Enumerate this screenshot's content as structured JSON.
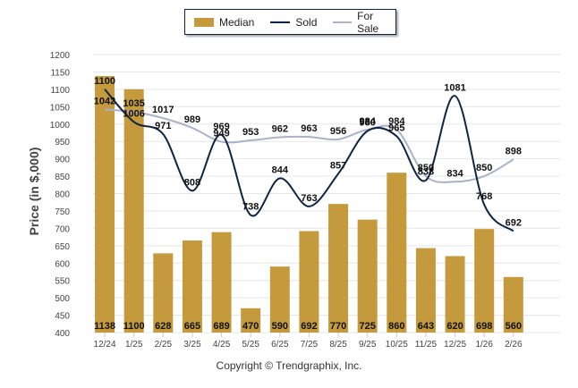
{
  "legend": {
    "median": "Median",
    "sold": "Sold",
    "for_sale": "For Sale"
  },
  "footer": "Copyright © Trendgraphix, Inc.",
  "colors": {
    "median": "#c49a3c",
    "sold": "#0f2444",
    "for_sale": "#a9b1cb",
    "grid": "#e6e6e6"
  },
  "chart_data": {
    "type": "bar",
    "title": "",
    "xlabel": "",
    "ylabel": "Price (in $,000)",
    "ylim": [
      400,
      1200
    ],
    "yticks": [
      400,
      450,
      500,
      550,
      600,
      650,
      700,
      750,
      800,
      850,
      900,
      950,
      1000,
      1050,
      1100,
      1150,
      1200
    ],
    "grid": true,
    "legend_position": "top-center",
    "categories": [
      "12/24",
      "1/25",
      "2/25",
      "3/25",
      "4/25",
      "5/25",
      "6/25",
      "7/25",
      "8/25",
      "9/25",
      "10/25",
      "11/25",
      "12/25",
      "1/26",
      "2/26"
    ],
    "series": [
      {
        "name": "Median",
        "kind": "bar",
        "values": [
          1138,
          1100,
          628,
          665,
          689,
          470,
          590,
          692,
          770,
          725,
          860,
          643,
          620,
          698,
          560
        ]
      },
      {
        "name": "Sold",
        "kind": "line",
        "values": [
          1100,
          1006,
          971,
          808,
          969,
          738,
          844,
          763,
          857,
          980,
          965,
          838,
          1081,
          768,
          692
        ]
      },
      {
        "name": "For Sale",
        "kind": "line",
        "values": [
          1042,
          1035,
          1017,
          989,
          949,
          953,
          962,
          963,
          956,
          984,
          984,
          850,
          834,
          850,
          898
        ]
      }
    ]
  }
}
